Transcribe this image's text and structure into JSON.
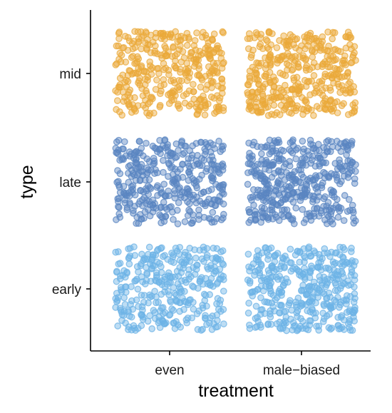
{
  "chart_data": {
    "type": "scatter",
    "subtype": "jittered-categorical",
    "title": "",
    "xlabel": "treatment",
    "ylabel": "type",
    "x_categories": [
      "even",
      "male−biased"
    ],
    "y_categories": [
      "early",
      "late",
      "mid"
    ],
    "grid": false,
    "legend": "none",
    "jitter": {
      "x": 0.4,
      "y": 0.4
    },
    "series": [
      {
        "type": "early",
        "color": "#6db3e6",
        "points_per_cell": {
          "even": 340,
          "male−biased": 400
        }
      },
      {
        "type": "late",
        "color": "#5a86c2",
        "points_per_cell": {
          "even": 380,
          "male−biased": 420
        }
      },
      {
        "type": "mid",
        "color": "#eaa93a",
        "points_per_cell": {
          "even": 360,
          "male−biased": 400
        }
      }
    ]
  }
}
